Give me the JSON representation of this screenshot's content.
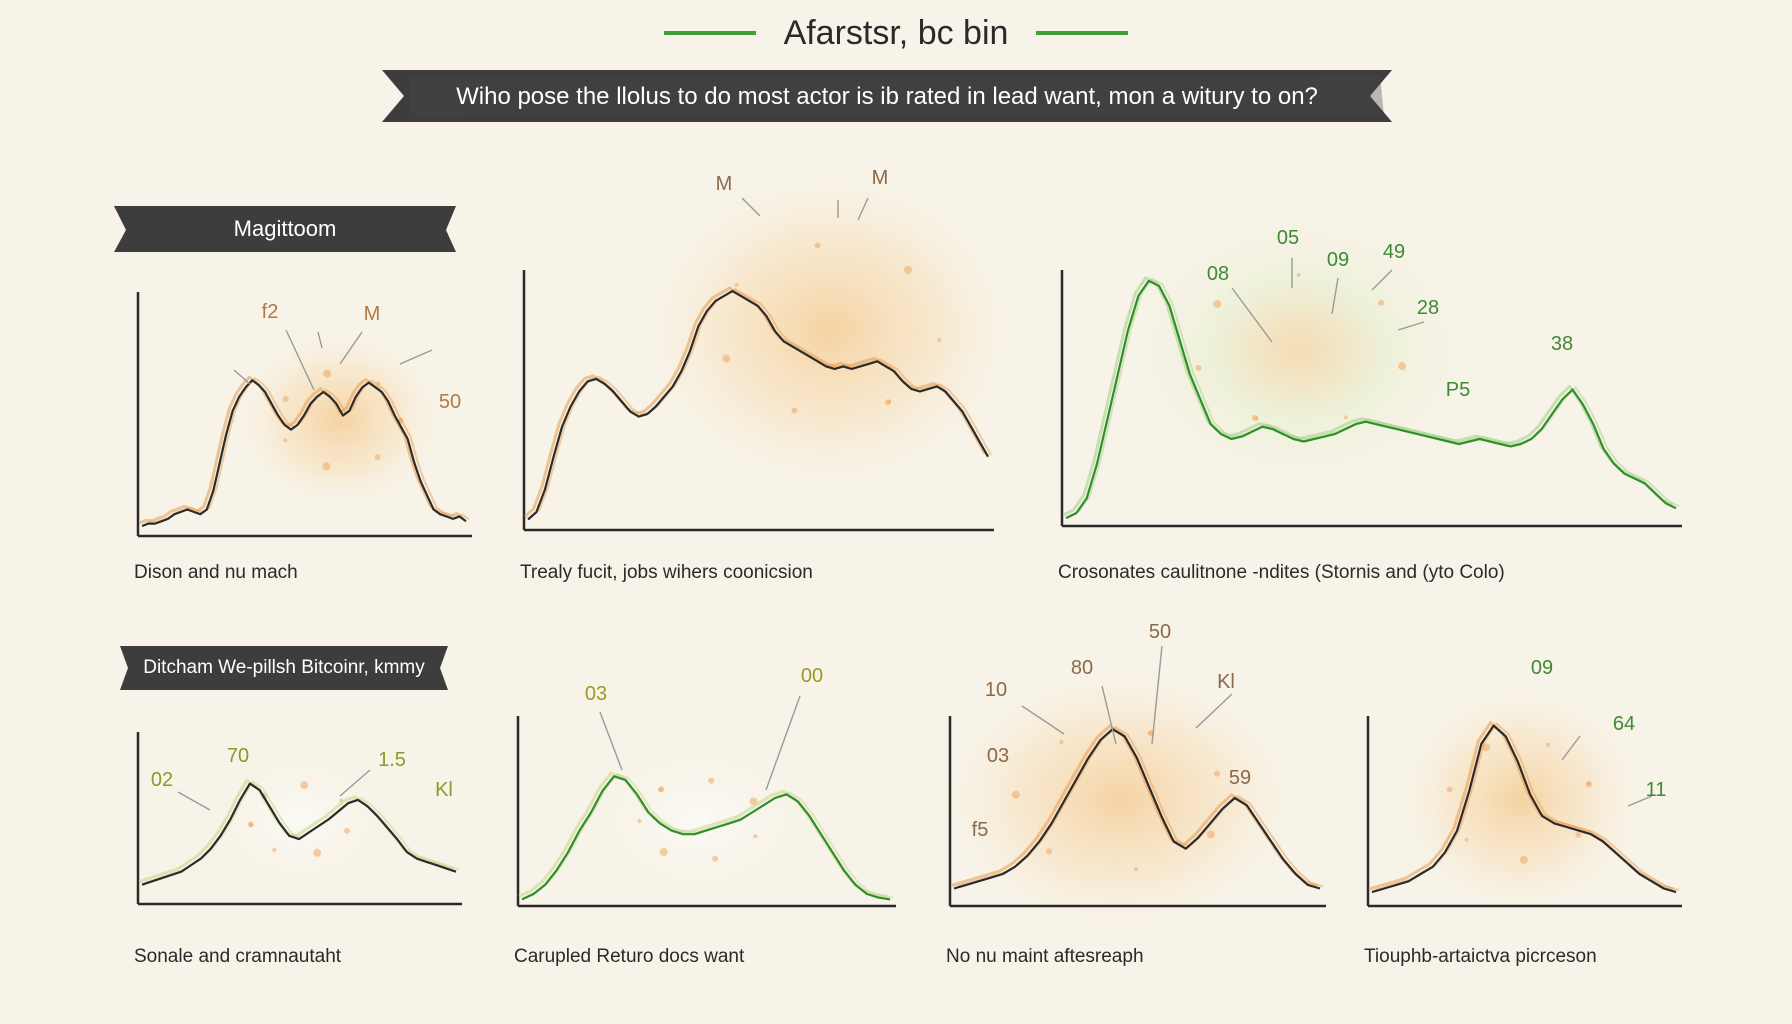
{
  "header": {
    "title": "Afarstsr, bc bin",
    "banner": "Wiho pose the llolus to do most actor is ib rated in lead want, mon a witury to on?",
    "accent_green": "#3fa03a",
    "ribbon_color": "#3d3d3d"
  },
  "section_labels": [
    "Magittoom",
    "Ditcham We-pillsh Bitcoinr, kmmy"
  ],
  "chart_data": [
    {
      "type": "line",
      "caption": "Dison and nu mach",
      "glow": "#f5c07a",
      "line_color": "#2b2b2b",
      "accent_color": "#e8a25a",
      "values": [
        3,
        4,
        4,
        5,
        6,
        8,
        9,
        10,
        9,
        8,
        10,
        18,
        30,
        42,
        52,
        58,
        62,
        65,
        63,
        60,
        55,
        50,
        46,
        44,
        46,
        50,
        55,
        58,
        60,
        58,
        55,
        50,
        52,
        58,
        62,
        64,
        62,
        60,
        56,
        50,
        45,
        40,
        30,
        22,
        16,
        10,
        8,
        7,
        6,
        7,
        5
      ],
      "annotations": [
        "f2",
        "M",
        "50"
      ],
      "annotation_color": "#b07a45"
    },
    {
      "type": "line",
      "caption": "Trealy fucit, jobs wihers coonicsion",
      "glow": "#f5c07a",
      "line_color": "#2b2b2b",
      "accent_color": "#e8a25a",
      "values": [
        3,
        6,
        15,
        28,
        40,
        48,
        54,
        58,
        59,
        57,
        54,
        50,
        46,
        44,
        45,
        48,
        52,
        56,
        62,
        70,
        80,
        86,
        90,
        92,
        94,
        92,
        90,
        88,
        84,
        78,
        74,
        72,
        70,
        68,
        66,
        64,
        63,
        64,
        63,
        64,
        65,
        66,
        64,
        62,
        58,
        55,
        54,
        55,
        56,
        54,
        50,
        46,
        40,
        34,
        28
      ],
      "annotations": [
        "M",
        "M"
      ],
      "annotation_color": "#8a6a4a"
    },
    {
      "type": "line",
      "caption": "Crosonates caulitnone -ndites (Stornis and (yto Colo)",
      "glow": "#e5efc9",
      "line_color": "#2f8f2a",
      "accent_color": "#a8d48a",
      "values": [
        2,
        4,
        10,
        24,
        42,
        60,
        78,
        92,
        98,
        96,
        88,
        74,
        60,
        50,
        40,
        36,
        34,
        35,
        37,
        39,
        38,
        36,
        34,
        33,
        34,
        35,
        36,
        38,
        40,
        41,
        40,
        39,
        38,
        37,
        36,
        35,
        34,
        33,
        32,
        33,
        34,
        33,
        32,
        31,
        32,
        34,
        38,
        44,
        50,
        54,
        48,
        40,
        30,
        24,
        20,
        18,
        16,
        12,
        8,
        6
      ],
      "annotations": [
        "05",
        "08",
        "09",
        "49",
        "28",
        "38",
        "P5"
      ],
      "annotation_color": "#3f8a34"
    },
    {
      "type": "line",
      "caption": "Sonale and cramnautaht",
      "glow": "#ffffff",
      "line_color": "#2b2b2b",
      "accent_color": "#c8d890",
      "values": [
        10,
        12,
        14,
        16,
        18,
        22,
        26,
        32,
        40,
        50,
        62,
        72,
        68,
        58,
        48,
        40,
        38,
        42,
        46,
        50,
        55,
        60,
        62,
        58,
        52,
        45,
        38,
        30,
        26,
        24,
        22,
        20,
        18
      ],
      "annotations": [
        "02",
        "70",
        "1.5",
        "Kl"
      ],
      "annotation_color": "#8a9a2a"
    },
    {
      "type": "line",
      "caption": "Carupled Returo docs want",
      "glow": "#ffffff",
      "line_color": "#2f8f2a",
      "accent_color": "#c8d890",
      "values": [
        2,
        5,
        10,
        18,
        28,
        40,
        50,
        62,
        70,
        68,
        60,
        50,
        44,
        40,
        38,
        38,
        40,
        42,
        44,
        46,
        50,
        54,
        58,
        60,
        56,
        48,
        38,
        28,
        18,
        10,
        5,
        3,
        2
      ],
      "annotations": [
        "03",
        "00"
      ],
      "annotation_color": "#9a9a2a"
    },
    {
      "type": "line",
      "caption": "No nu maint aftesreaph",
      "glow": "#f5c07a",
      "line_color": "#2b2b2b",
      "accent_color": "#e8a25a",
      "values": [
        8,
        10,
        12,
        14,
        16,
        20,
        26,
        34,
        44,
        56,
        68,
        80,
        90,
        96,
        92,
        80,
        64,
        48,
        34,
        30,
        36,
        44,
        52,
        58,
        54,
        44,
        34,
        24,
        16,
        10,
        8
      ],
      "annotations": [
        "10",
        "80",
        "50",
        "Kl",
        "03",
        "59",
        "f5"
      ],
      "annotation_color": "#8a6a4a"
    },
    {
      "type": "line",
      "caption": "Tiouphb-artaictva picrceson",
      "glow": "#f5c07a",
      "line_color": "#2b2b2b",
      "accent_color": "#e8a25a",
      "values": [
        6,
        8,
        10,
        12,
        16,
        20,
        28,
        40,
        62,
        88,
        98,
        92,
        78,
        60,
        48,
        44,
        42,
        40,
        38,
        34,
        28,
        22,
        16,
        12,
        8,
        6
      ],
      "annotations": [
        "09",
        "64",
        "11"
      ],
      "annotation_color": "#3f8a34"
    }
  ]
}
